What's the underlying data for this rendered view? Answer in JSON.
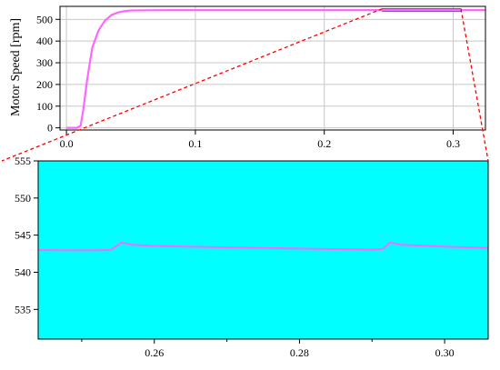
{
  "chart_data": [
    {
      "type": "line",
      "xlabel": "",
      "ylabel": "Motor Speed [rpm]",
      "xlim": [
        -0.005,
        0.325
      ],
      "ylim": [
        -10,
        560
      ],
      "xticks": [
        "0.0",
        "0.1",
        "0.2",
        "0.3"
      ],
      "xtick_values": [
        0.0,
        0.1,
        0.2,
        0.3
      ],
      "yticks": [
        "0",
        "100",
        "200",
        "300",
        "400",
        "500"
      ],
      "ytick_values": [
        0,
        100,
        200,
        300,
        400,
        500
      ],
      "grid": true,
      "series": [
        {
          "color": "#ff66ff",
          "x": [
            0.0,
            0.008,
            0.011,
            0.013,
            0.016,
            0.02,
            0.025,
            0.03,
            0.035,
            0.04,
            0.045,
            0.05,
            0.06,
            0.08,
            0.1,
            0.15,
            0.2,
            0.25,
            0.3,
            0.325
          ],
          "y": [
            0,
            0,
            10,
            80,
            220,
            370,
            450,
            495,
            520,
            532,
            538,
            541,
            542,
            543,
            543,
            543,
            543,
            543,
            543,
            543
          ]
        }
      ],
      "zoom_box": {
        "xlim": [
          0.245,
          0.306
        ],
        "ylim": [
          537,
          549
        ],
        "color": "#6699ff"
      }
    },
    {
      "type": "line",
      "xlabel": "",
      "ylabel": "",
      "xlim": [
        0.244,
        0.306
      ],
      "ylim": [
        531,
        555
      ],
      "xticks": [
        "0.26",
        "0.28",
        "0.30"
      ],
      "xtick_values": [
        0.26,
        0.28,
        0.3
      ],
      "yticks": [
        "535",
        "540",
        "545",
        "550",
        "555"
      ],
      "ytick_values": [
        535,
        540,
        545,
        550,
        555
      ],
      "background": "#00ffff",
      "grid": false,
      "series": [
        {
          "color": "#ff66ff",
          "x": [
            0.244,
            0.25,
            0.254,
            0.2555,
            0.257,
            0.26,
            0.27,
            0.28,
            0.29,
            0.2915,
            0.2925,
            0.294,
            0.3,
            0.306
          ],
          "y": [
            543.0,
            542.95,
            543.0,
            544.0,
            543.7,
            543.55,
            543.35,
            543.2,
            543.05,
            543.15,
            544.0,
            543.7,
            543.45,
            543.3
          ]
        }
      ]
    }
  ],
  "connector_color": "#ff0000"
}
